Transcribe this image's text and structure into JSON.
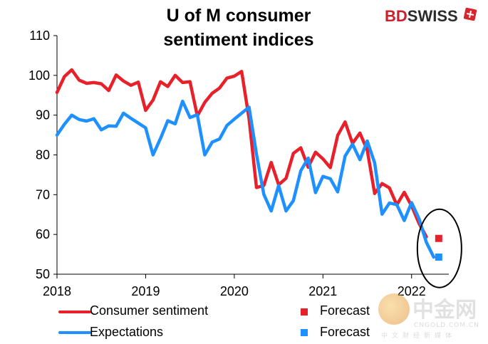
{
  "brand": {
    "part1": "BD",
    "part2": "SWISS"
  },
  "watermark": {
    "name_cn": "中金网",
    "sub": "CNGOLD.COM.CN",
    "sub_cn": "中文财经新媒体"
  },
  "colors": {
    "sentiment": "#e8202a",
    "expectations": "#1e90ff"
  },
  "chart_data": {
    "type": "line",
    "title": [
      "U of M consumer",
      "sentiment indices"
    ],
    "xlabel": "",
    "ylabel": "",
    "ylim": [
      50,
      110
    ],
    "yticks": [
      50,
      60,
      70,
      80,
      90,
      100,
      110
    ],
    "xlim": [
      2018.0,
      2022.42
    ],
    "xticks": [
      2018,
      2019,
      2020,
      2021,
      2022
    ],
    "grid": false,
    "legend": "bottom",
    "annotations": [
      "ellipse around April 2022 forecasts"
    ],
    "series": [
      {
        "name": "Consumer sentiment",
        "color": "#e8202a",
        "start": "2018-01",
        "values": [
          95.7,
          99.7,
          101.4,
          98.8,
          98.0,
          98.2,
          97.9,
          96.2,
          100.1,
          98.6,
          97.5,
          98.3,
          91.2,
          93.8,
          98.4,
          97.2,
          100.0,
          98.2,
          98.4,
          89.8,
          93.2,
          95.5,
          96.8,
          99.3,
          99.8,
          101.0,
          89.1,
          71.8,
          72.3,
          78.1,
          72.5,
          74.1,
          80.4,
          81.8,
          76.9,
          80.7,
          79.0,
          76.8,
          84.9,
          88.3,
          82.9,
          85.5,
          81.2,
          70.3,
          72.8,
          71.7,
          67.4,
          70.6,
          67.2,
          62.8,
          59.4
        ]
      },
      {
        "name": "Expectations",
        "color": "#1e90ff",
        "start": "2018-01",
        "values": [
          85.0,
          87.7,
          90.0,
          88.9,
          88.5,
          89.1,
          86.3,
          87.3,
          87.2,
          90.5,
          89.2,
          88.0,
          86.8,
          80.0,
          84.1,
          88.6,
          87.8,
          93.5,
          89.4,
          90.1,
          80.0,
          83.2,
          84.0,
          87.4,
          89.0,
          90.5,
          92.0,
          80.2,
          70.1,
          65.9,
          72.3,
          65.9,
          68.5,
          76.0,
          79.2,
          70.5,
          74.6,
          74.0,
          70.7,
          79.7,
          82.7,
          78.8,
          83.5,
          78.0,
          65.1,
          67.9,
          67.5,
          63.5,
          68.0,
          64.0,
          58.0,
          54.3
        ]
      },
      {
        "name": "Forecast",
        "color": "#e8202a",
        "marker": "square",
        "x": "2022-04",
        "values": [
          59.0
        ]
      },
      {
        "name": "Forecast",
        "color": "#1e90ff",
        "marker": "square",
        "x": "2022-04",
        "values": [
          54.3
        ]
      }
    ]
  }
}
